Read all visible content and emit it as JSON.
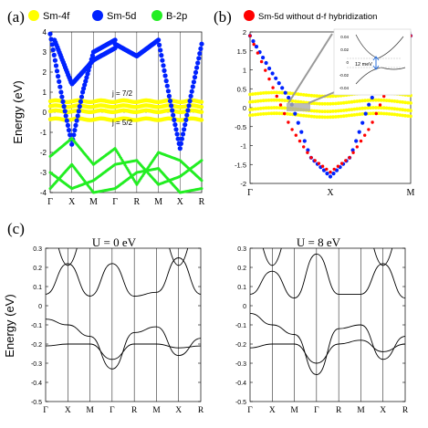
{
  "chart_data": [
    {
      "panel": "(a)",
      "type": "scatter",
      "legend": [
        {
          "name": "Sm-4f",
          "color": "#ffff00"
        },
        {
          "name": "Sm-5d",
          "color": "#0022ff"
        },
        {
          "name": "B-2p",
          "color": "#22ee22"
        }
      ],
      "ylabel": "Energy (eV)",
      "ylim": [
        -4,
        4
      ],
      "yticks": [
        "4",
        "3",
        "2",
        "1",
        "0",
        "-1",
        "-2",
        "-3",
        "-4"
      ],
      "kpath": [
        "Γ",
        "X",
        "M",
        "Γ",
        "R",
        "M",
        "X",
        "R"
      ],
      "annotations": [
        "j = 7/2",
        "j = 5/2"
      ],
      "series": [
        {
          "name": "Sm-4f",
          "bands": [
            {
              "x": [
                0,
                7
              ],
              "y": [
                0.55,
                0.55
              ]
            },
            {
              "x": [
                0,
                7
              ],
              "y": [
                0.3,
                0.3
              ]
            },
            {
              "x": [
                0,
                7
              ],
              "y": [
                0.05,
                0.05
              ]
            },
            {
              "x": [
                0,
                7
              ],
              "y": [
                -0.35,
                -0.35
              ]
            }
          ]
        },
        {
          "name": "Sm-5d",
          "bands": [
            {
              "x": [
                0,
                0.5,
                1,
                1.5,
                2,
                3
              ],
              "y": [
                3.9,
                1.0,
                -1.6,
                1.0,
                3.0,
                3.6
              ]
            },
            {
              "x": [
                3,
                4,
                5,
                5.5,
                6,
                6.5,
                7
              ],
              "y": [
                3.4,
                2.8,
                3.6,
                0.8,
                -1.8,
                0.8,
                3.4
              ]
            },
            {
              "x": [
                0.2,
                1,
                2,
                3
              ],
              "y": [
                3.6,
                1.4,
                2.6,
                3.2
              ]
            }
          ]
        },
        {
          "name": "B-2p",
          "bands": [
            {
              "x": [
                0,
                1,
                2,
                3,
                4,
                5,
                6,
                7
              ],
              "y": [
                -2.2,
                -1.3,
                -2.6,
                -1.8,
                -3.6,
                -2.0,
                -2.4,
                -3.4
              ]
            },
            {
              "x": [
                0,
                1,
                2,
                3,
                4,
                5,
                6,
                7
              ],
              "y": [
                -3.0,
                -3.8,
                -3.4,
                -2.6,
                -2.4,
                -3.6,
                -3.2,
                -2.4
              ]
            },
            {
              "x": [
                0,
                1,
                2,
                3,
                4,
                5,
                6,
                7
              ],
              "y": [
                -3.8,
                -2.6,
                -4.0,
                -3.8,
                -3.0,
                -2.8,
                -4.0,
                -3.8
              ]
            }
          ]
        }
      ]
    },
    {
      "panel": "(b)",
      "type": "scatter",
      "legend": [
        {
          "name": "Sm-5d without d-f hybridization",
          "color": "#ff0000"
        }
      ],
      "ylim": [
        -2,
        2
      ],
      "yticks": [
        "2",
        "1.5",
        "1",
        "0.5",
        "0",
        "-0.5",
        "-1",
        "-1.5",
        "-2"
      ],
      "kpath": [
        "Γ",
        "X",
        "M"
      ],
      "inset_label": "12 meV",
      "inset_ticks": [
        "0.04",
        "0.02",
        "0",
        "-0.02",
        "-0.04"
      ],
      "series": [
        {
          "name": "Sm-5d without d-f hybridization",
          "x": [
            0,
            0.25,
            0.5,
            0.75,
            1,
            1.25,
            1.5,
            1.75,
            2
          ],
          "y": [
            1.9,
            0.7,
            -0.5,
            -1.3,
            -1.7,
            -1.3,
            -0.5,
            0.7,
            1.9
          ]
        },
        {
          "name": "Sm-5d",
          "x": [
            0,
            0.25,
            0.5,
            0.75,
            1,
            1.25,
            1.5,
            1.75,
            2
          ],
          "y": [
            1.9,
            1.0,
            0.2,
            -1.3,
            -1.82,
            -1.3,
            0.2,
            1.0,
            1.9
          ]
        },
        {
          "name": "Sm-4f",
          "bands": [
            {
              "x": [
                0,
                2
              ],
              "y": [
                0.35,
                0.35
              ]
            },
            {
              "x": [
                0,
                2
              ],
              "y": [
                0.15,
                0.15
              ]
            },
            {
              "x": [
                0,
                2
              ],
              "y": [
                -0.05,
                -0.05
              ]
            },
            {
              "x": [
                0,
                2
              ],
              "y": [
                -0.2,
                -0.2
              ]
            }
          ]
        }
      ]
    },
    {
      "panel": "(c)",
      "type": "line",
      "title": "U = 0 eV",
      "ylabel": "Energy (eV)",
      "ylim": [
        -0.5,
        0.3
      ],
      "yticks": [
        "0.3",
        "0.2",
        "0.1",
        "0",
        "-0.1",
        "-0.2",
        "-0.3",
        "-0.4",
        "-0.5"
      ],
      "kpath": [
        "Γ",
        "X",
        "M",
        "Γ",
        "R",
        "M",
        "X",
        "R"
      ],
      "series": [
        {
          "x": [
            0,
            1,
            2,
            3,
            4,
            5,
            6,
            7
          ],
          "y": [
            -0.21,
            -0.2,
            -0.2,
            -0.28,
            -0.2,
            -0.2,
            -0.22,
            -0.21
          ]
        },
        {
          "x": [
            0,
            1,
            2,
            3,
            4,
            5,
            6,
            7
          ],
          "y": [
            -0.07,
            -0.1,
            -0.16,
            -0.33,
            -0.14,
            -0.11,
            -0.26,
            -0.17
          ]
        },
        {
          "x": [
            0,
            1,
            2,
            3,
            4,
            5,
            6,
            7
          ],
          "y": [
            0.06,
            0.22,
            0.05,
            0.22,
            0.05,
            0.07,
            0.25,
            0.06
          ]
        }
      ]
    },
    {
      "panel": "(c)",
      "type": "line",
      "title": "U = 8 eV",
      "ylim": [
        -0.5,
        0.3
      ],
      "yticks": [
        "0.3",
        "0.2",
        "0.1",
        "0",
        "-0.1",
        "-0.2",
        "-0.3",
        "-0.4",
        "-0.5"
      ],
      "kpath": [
        "Γ",
        "X",
        "M",
        "Γ",
        "R",
        "M",
        "X",
        "R"
      ],
      "series": [
        {
          "x": [
            0,
            1,
            2,
            3,
            4,
            5,
            6,
            7
          ],
          "y": [
            -0.22,
            -0.2,
            -0.2,
            -0.3,
            -0.2,
            -0.18,
            -0.24,
            -0.2
          ]
        },
        {
          "x": [
            0,
            1,
            2,
            3,
            4,
            5,
            6,
            7
          ],
          "y": [
            -0.04,
            -0.1,
            -0.15,
            -0.36,
            -0.12,
            -0.1,
            -0.28,
            -0.16
          ]
        },
        {
          "x": [
            0,
            1,
            2,
            3,
            4,
            5,
            6,
            7
          ],
          "y": [
            0.06,
            0.18,
            0.04,
            0.27,
            0.06,
            0.06,
            0.22,
            0.04
          ]
        }
      ]
    }
  ]
}
